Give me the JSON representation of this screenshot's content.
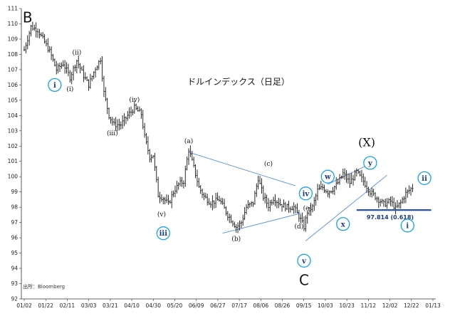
{
  "chart_data": {
    "type": "ohlc",
    "title": "ドルインデックス（日足）",
    "source": "出所：Bloomberg",
    "ylim": [
      92,
      111
    ],
    "yticks": [
      92,
      93,
      94,
      95,
      96,
      97,
      98,
      99,
      100,
      101,
      102,
      103,
      104,
      105,
      106,
      107,
      108,
      109,
      110,
      111
    ],
    "xticks": [
      "01/02",
      "01/22",
      "02/11",
      "03/03",
      "03/21",
      "04/10",
      "04/30",
      "05/20",
      "06/09",
      "06/27",
      "07/17",
      "08/06",
      "08/26",
      "09/15",
      "10/03",
      "10/23",
      "11/12",
      "12/02",
      "12/22",
      "01/13"
    ],
    "grid": false,
    "price_anchors": [
      [
        0,
        108.3
      ],
      [
        4,
        109.8
      ],
      [
        8,
        109.6
      ],
      [
        12,
        108.8
      ],
      [
        15,
        108.2
      ],
      [
        19,
        107.0
      ],
      [
        23,
        107.4
      ],
      [
        27,
        106.5
      ],
      [
        31,
        107.6
      ],
      [
        35,
        106.6
      ],
      [
        38,
        106.0
      ],
      [
        42,
        107.1
      ],
      [
        45,
        107.7
      ],
      [
        47,
        105.5
      ],
      [
        50,
        104.0
      ],
      [
        53,
        103.4
      ],
      [
        57,
        103.4
      ],
      [
        61,
        104.0
      ],
      [
        65,
        104.5
      ],
      [
        69,
        104.1
      ],
      [
        71,
        102.6
      ],
      [
        74,
        101.3
      ],
      [
        76,
        101.4
      ],
      [
        79,
        98.8
      ],
      [
        82,
        98.6
      ],
      [
        85,
        98.2
      ],
      [
        88,
        99.0
      ],
      [
        91,
        99.5
      ],
      [
        94,
        99.7
      ],
      [
        97,
        101.8
      ],
      [
        100,
        100.6
      ],
      [
        103,
        99.3
      ],
      [
        106,
        98.7
      ],
      [
        110,
        98.3
      ],
      [
        115,
        98.5
      ],
      [
        120,
        97.5
      ],
      [
        125,
        96.7
      ],
      [
        128,
        97.0
      ],
      [
        131,
        98.0
      ],
      [
        135,
        98.3
      ],
      [
        138,
        99.9
      ],
      [
        141,
        98.7
      ],
      [
        144,
        98.1
      ],
      [
        147,
        98.6
      ],
      [
        151,
        98.2
      ],
      [
        155,
        98.0
      ],
      [
        159,
        98.0
      ],
      [
        163,
        97.2
      ],
      [
        165,
        96.7
      ],
      [
        167,
        97.7
      ],
      [
        170,
        98.0
      ],
      [
        173,
        99.1
      ],
      [
        176,
        99.3
      ],
      [
        179,
        99.0
      ],
      [
        182,
        99.2
      ],
      [
        185,
        99.6
      ],
      [
        188,
        100.2
      ],
      [
        192,
        99.6
      ],
      [
        196,
        100.3
      ],
      [
        200,
        99.7
      ],
      [
        204,
        99.0
      ],
      [
        208,
        98.6
      ],
      [
        212,
        98.2
      ],
      [
        216,
        98.4
      ],
      [
        219,
        97.9
      ],
      [
        222,
        98.3
      ],
      [
        225,
        98.9
      ],
      [
        229,
        99.3
      ]
    ],
    "wave_labels": [
      {
        "text": "B",
        "style": "big",
        "day": 2,
        "price": 110.1
      },
      {
        "text": "i",
        "style": "circle",
        "day": 18,
        "price": 106.0
      },
      {
        "text": "(i)",
        "style": "plain",
        "day": 27,
        "price": 105.6
      },
      {
        "text": "(ii)",
        "style": "plain",
        "day": 31,
        "price": 108.0
      },
      {
        "text": "(iii)",
        "style": "plain",
        "day": 52,
        "price": 102.7
      },
      {
        "text": "(iv)",
        "style": "plain",
        "day": 65,
        "price": 104.9
      },
      {
        "text": "(v)",
        "style": "plain",
        "day": 81,
        "price": 97.4
      },
      {
        "text": "iii",
        "style": "circle",
        "day": 82,
        "price": 96.3
      },
      {
        "text": "(a)",
        "style": "plain",
        "day": 97,
        "price": 102.2
      },
      {
        "text": "(b)",
        "style": "plain",
        "day": 125,
        "price": 95.8
      },
      {
        "text": "(c)",
        "style": "plain",
        "day": 144,
        "price": 100.7
      },
      {
        "text": "(d)",
        "style": "plain",
        "day": 162,
        "price": 96.6
      },
      {
        "text": "(e)",
        "style": "plain",
        "day": 167,
        "price": 97.8
      },
      {
        "text": "iv",
        "style": "circle",
        "day": 166,
        "price": 98.9
      },
      {
        "text": "v",
        "style": "circle",
        "day": 165,
        "price": 94.5
      },
      {
        "text": "C",
        "style": "big",
        "day": 165,
        "price": 92.9
      },
      {
        "text": "w",
        "style": "circle",
        "day": 179,
        "price": 100.0
      },
      {
        "text": "x",
        "style": "circle",
        "day": 188,
        "price": 96.9
      },
      {
        "text": "y",
        "style": "circle",
        "day": 204,
        "price": 100.9
      },
      {
        "text": "(X)",
        "style": "bigp",
        "day": 202,
        "price": 102.0
      },
      {
        "text": "ii",
        "style": "circle",
        "day": 236,
        "price": 99.9
      },
      {
        "text": "i",
        "style": "circle",
        "day": 226,
        "price": 96.8
      }
    ],
    "trendlines": [
      {
        "name": "triangle-upper",
        "from": [
          97,
          101.6
        ],
        "to": [
          160,
          99.4
        ]
      },
      {
        "name": "triangle-lower",
        "from": [
          117,
          96.3
        ],
        "to": [
          163,
          97.6
        ]
      },
      {
        "name": "channel-upper",
        "from": [
          179,
          99.5
        ],
        "to": [
          205,
          100.9
        ]
      },
      {
        "name": "channel-lower",
        "from": [
          166,
          95.8
        ],
        "to": [
          214,
          100.1
        ]
      }
    ],
    "support_line": {
      "price": 97.814,
      "label": "97.814 (0.618)",
      "from_day": 196,
      "to_day": 240
    }
  }
}
